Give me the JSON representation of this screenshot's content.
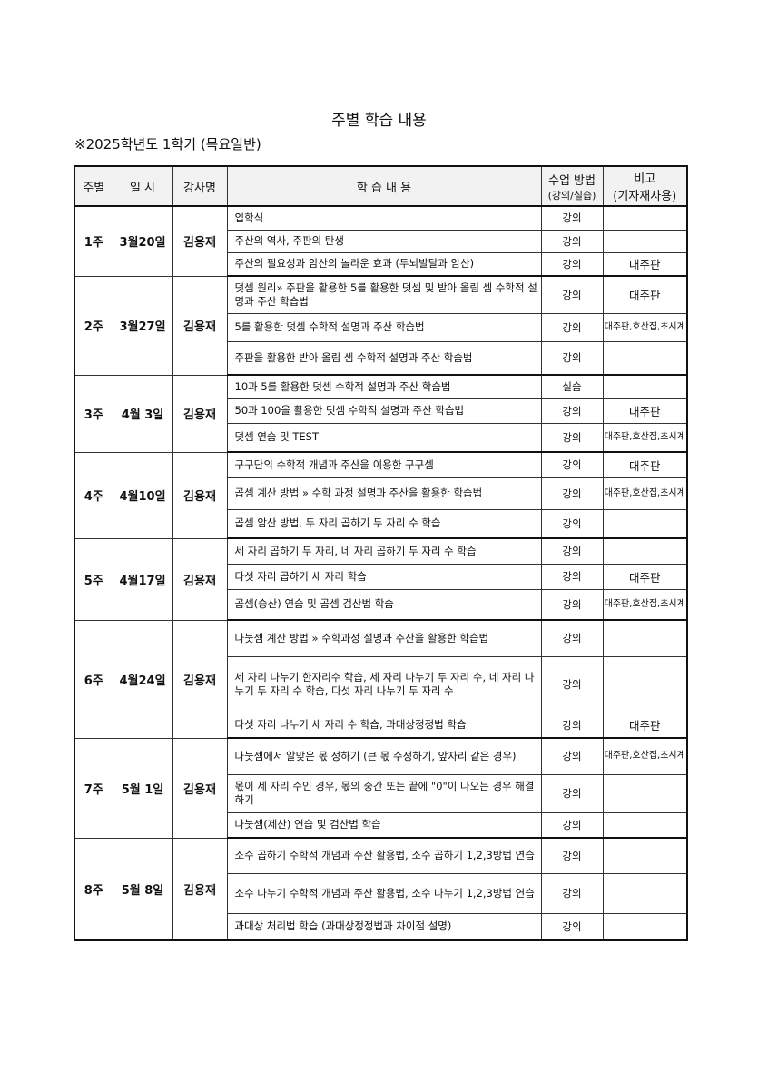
{
  "title": "주별 학습 내용",
  "subtitle": "※2025학년도 1학기 (목요일반)",
  "headers": {
    "week": "주별",
    "date": "일 시",
    "teacher": "강사명",
    "content": "학 습 내 용",
    "method": "수업 방법",
    "method_sub": "(강의/실습)",
    "note": "비고",
    "note_sub": "(기자재사용)"
  },
  "weeks": [
    {
      "week": "1주",
      "date": "3월20일",
      "teacher": "김용재",
      "rows": [
        {
          "content": "입학식",
          "method": "강의",
          "note": ""
        },
        {
          "content": "주산의 역사, 주판의 탄생",
          "method": "강의",
          "note": ""
        },
        {
          "content": "주산의 필요성과 암산의 놀라운 효과 (두뇌발달과 암산)",
          "method": "강의",
          "note": "대주판"
        }
      ]
    },
    {
      "week": "2주",
      "date": "3월27일",
      "teacher": "김용재",
      "rows": [
        {
          "content": "덧셈 원리» 주판을 활용한 5를 활용한 덧셈 및 받아 올림 셈 수학적 설명과 주산 학습법",
          "method": "강의",
          "note": "대주판"
        },
        {
          "content": "5를 활용한 덧셈 수학적 설명과 주산 학습법",
          "method": "강의",
          "note": "대주판,호산집,초시계"
        },
        {
          "content": "주판을 활용한 받아 올림 셈 수학적 설명과 주산 학습법",
          "method": "강의",
          "note": ""
        }
      ]
    },
    {
      "week": "3주",
      "date": "4월 3일",
      "teacher": "김용재",
      "rows": [
        {
          "content": "10과 5를 활용한 덧셈 수학적 설명과 주산 학습법",
          "method": "실습",
          "note": ""
        },
        {
          "content": "50과 100을 활용한 덧셈 수학적 설명과 주산 학습법",
          "method": "강의",
          "note": "대주판"
        },
        {
          "content": "덧셈 연습 및 TEST",
          "method": "강의",
          "note": "대주판,호산집,초시계"
        }
      ]
    },
    {
      "week": "4주",
      "date": "4월10일",
      "teacher": "김용재",
      "rows": [
        {
          "content": "구구단의 수학적 개념과 주산을 이용한 구구셈",
          "method": "강의",
          "note": "대주판"
        },
        {
          "content": "곱셈 계산 방법 » 수학 과정 설명과 주산을 활용한 학습법",
          "method": "강의",
          "note": "대주판,호산집,초시계"
        },
        {
          "content": "곱셈 암산 방법, 두 자리 곱하기 두 자리 수 학습",
          "method": "강의",
          "note": ""
        }
      ]
    },
    {
      "week": "5주",
      "date": "4월17일",
      "teacher": "김용재",
      "rows": [
        {
          "content": "세 자리 곱하기 두 자리, 네 자리 곱하기 두 자리 수 학습",
          "method": "강의",
          "note": ""
        },
        {
          "content": "다섯 자리 곱하기 세 자리 학습",
          "method": "강의",
          "note": "대주판"
        },
        {
          "content": "곱셈(승산) 연습 및 곱셈 검산법 학습",
          "method": "강의",
          "note": "대주판,호산집,초시계"
        }
      ]
    },
    {
      "week": "6주",
      "date": "4월24일",
      "teacher": "김용재",
      "rows": [
        {
          "content": "나눗셈 계산 방법 » 수학과정 설명과 주산을 활용한 학습법",
          "method": "강의",
          "note": ""
        },
        {
          "content": "세 자리 나누기 한자리수 학습, 세 자리 나누기 두 자리 수, 네 자리 나누기 두 자리 수 학습, 다섯 자리 나누기 두 자리 수",
          "method": "강의",
          "note": ""
        },
        {
          "content": "다섯 자리 나누기 세 자리 수 학습, 과대상정정법 학습",
          "method": "강의",
          "note": "대주판"
        }
      ]
    },
    {
      "week": "7주",
      "date": "5월 1일",
      "teacher": "김용재",
      "rows": [
        {
          "content": "나눗셈에서 알맞은 몫 정하기 (큰 몫 수정하기, 앞자리 같은 경우)",
          "method": "강의",
          "note": "대주판,호산집,초시계"
        },
        {
          "content": "몫이 세 자리 수인 경우, 몫의 중간 또는 끝에 \"0\"이 나오는 경우 해결하기",
          "method": "강의",
          "note": ""
        },
        {
          "content": "나눗셈(제산) 연습 및  검산법 학습",
          "method": "강의",
          "note": ""
        }
      ]
    },
    {
      "week": "8주",
      "date": "5월 8일",
      "teacher": "김용재",
      "rows": [
        {
          "content": "소수 곱하기 수학적 개념과 주산 활용법, 소수 곱하기 1,2,3방법 연습",
          "method": "강의",
          "note": ""
        },
        {
          "content": "소수 나누기 수학적 개념과 주산 활용법, 소수 나누기 1,2,3방법 연습",
          "method": "강의",
          "note": ""
        },
        {
          "content": "과대상 처리법 학습 (과대상정정법과 차이점 설명)",
          "method": "강의",
          "note": ""
        }
      ]
    }
  ]
}
